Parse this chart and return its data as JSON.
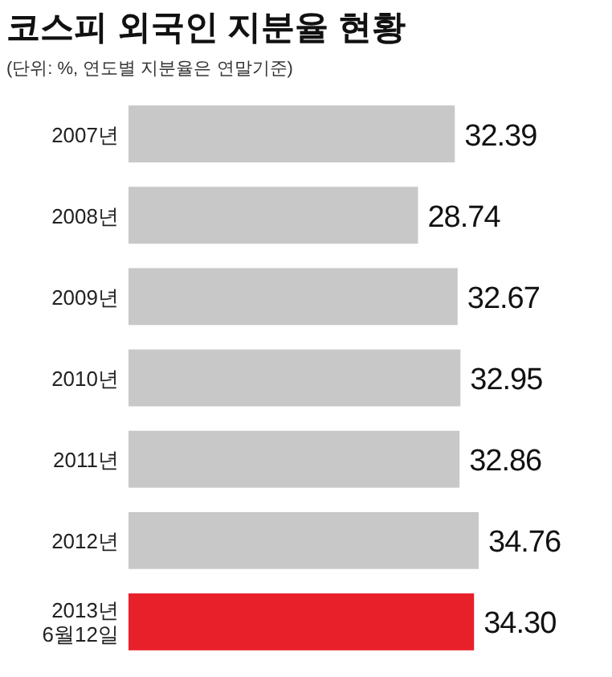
{
  "chart_data": {
    "type": "bar",
    "orientation": "horizontal",
    "title": "코스피 외국인 지분율 현황",
    "subtitle": "(단위: %, 연도별 지분율은 연말기준)",
    "categories": [
      "2007년",
      "2008년",
      "2009년",
      "2010년",
      "2011년",
      "2012년",
      "2013년\n6월12일"
    ],
    "values": [
      32.39,
      28.74,
      32.67,
      32.95,
      32.86,
      34.76,
      34.3
    ],
    "value_labels": [
      "32.39",
      "28.74",
      "32.67",
      "32.95",
      "32.86",
      "34.76",
      "34.30"
    ],
    "colors": [
      "#c8c8c8",
      "#c8c8c8",
      "#c8c8c8",
      "#c8c8c8",
      "#c8c8c8",
      "#c8c8c8",
      "#e8202a"
    ]
  }
}
